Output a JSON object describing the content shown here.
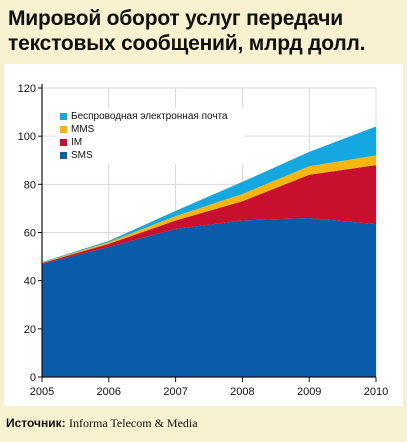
{
  "title": "Мировой оборот услуг передачи текстовых сообщений, млрд долл.",
  "source": {
    "label": "Источник:",
    "value": "Informa Telecom & Media"
  },
  "colors": {
    "background": "#f7f1cf",
    "panel": "#ffffff",
    "sms": "#0a5ba9",
    "im": "#c8102e",
    "mms": "#f8b50e",
    "email": "#14a7e0"
  },
  "chart_data": {
    "type": "area",
    "stacked": true,
    "x": [
      "2005",
      "2006",
      "2007",
      "2008",
      "2009",
      "2010"
    ],
    "ylim": [
      0,
      120
    ],
    "yticks": [
      0,
      20,
      40,
      60,
      80,
      100,
      120
    ],
    "grid": true,
    "legend_position": "top-left",
    "series": [
      {
        "name": "SMS",
        "color": "#0a5ba9",
        "values": [
          47,
          54,
          61.5,
          65,
          66,
          63.5
        ]
      },
      {
        "name": "IM",
        "color": "#c8102e",
        "values": [
          0.3,
          1.3,
          3.5,
          8,
          18,
          24.5
        ]
      },
      {
        "name": "MMS",
        "color": "#f8b50e",
        "values": [
          0.2,
          0.7,
          1.8,
          3,
          3.5,
          4
        ]
      },
      {
        "name": "Беспроводная электронная почта",
        "color": "#14a7e0",
        "values": [
          0.2,
          0.5,
          2.2,
          5,
          6,
          12
        ]
      }
    ],
    "legend_order": [
      "Беспроводная электронная почта",
      "MMS",
      "IM",
      "SMS"
    ]
  }
}
